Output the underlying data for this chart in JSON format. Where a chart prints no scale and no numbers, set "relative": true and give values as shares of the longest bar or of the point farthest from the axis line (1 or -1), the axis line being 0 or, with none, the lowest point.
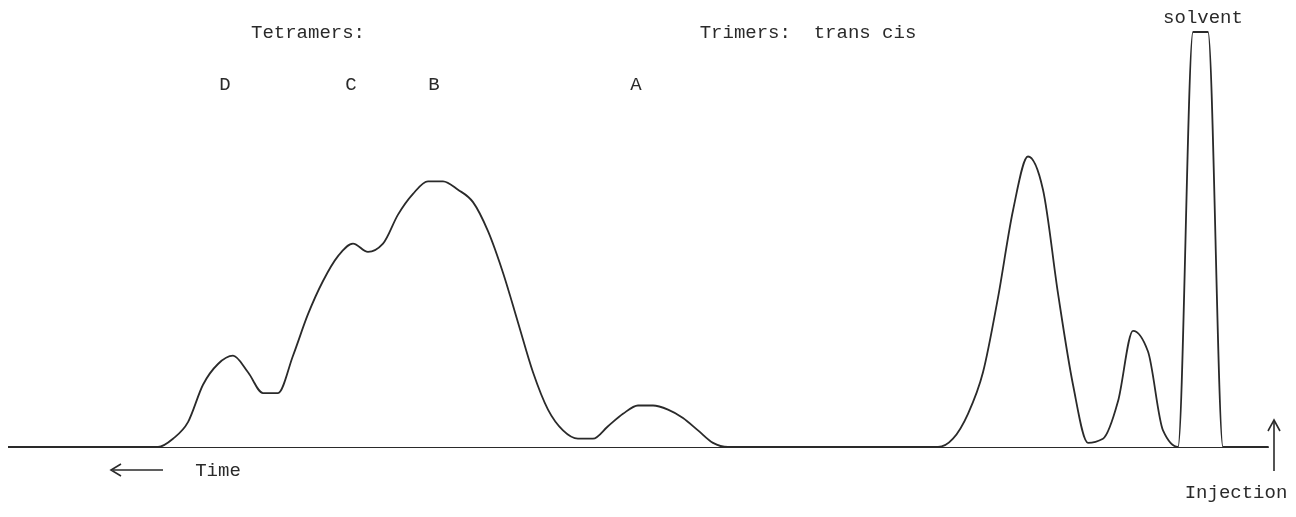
{
  "chart_data": {
    "type": "line",
    "relative": true,
    "color": "#2a2a2a",
    "categories": [
      null,
      null,
      null,
      null,
      null,
      null,
      null,
      null,
      null,
      null,
      null,
      null,
      null,
      null,
      null,
      null,
      null,
      null,
      null,
      null,
      null,
      null,
      null,
      null,
      null,
      null,
      null,
      null,
      null,
      null,
      null,
      null,
      null,
      null,
      null,
      null,
      null,
      null,
      null,
      null,
      null,
      null,
      null,
      null,
      null,
      null,
      null,
      null,
      null,
      null,
      null,
      null,
      null,
      null,
      null,
      null,
      null,
      null,
      null,
      null,
      null,
      null,
      null,
      null,
      null,
      null,
      null,
      null,
      null,
      null,
      null,
      null,
      null,
      null,
      null,
      null,
      null,
      null,
      null,
      null,
      null,
      null,
      null,
      null,
      null
    ],
    "values": [
      0,
      0,
      0,
      0,
      0,
      0,
      0,
      0,
      0,
      0,
      0,
      0.02,
      0.06,
      0.15,
      0.2,
      0.22,
      0.18,
      0.13,
      0.13,
      0.22,
      0.32,
      0.4,
      0.46,
      0.49,
      0.47,
      0.49,
      0.56,
      0.61,
      0.64,
      0.64,
      0.62,
      0.59,
      0.52,
      0.42,
      0.3,
      0.18,
      0.09,
      0.04,
      0.02,
      0.02,
      0.05,
      0.08,
      0.1,
      0.1,
      0.09,
      0.07,
      0.04,
      0.01,
      0,
      0,
      0,
      0,
      0,
      0,
      0,
      0,
      0,
      0,
      0,
      0,
      0,
      0,
      0,
      0.02,
      0.08,
      0.18,
      0.36,
      0.57,
      0.7,
      0.62,
      0.37,
      0.15,
      0.01,
      0.02,
      0.11,
      0.28,
      0.23,
      0.04,
      0,
      1,
      1,
      0,
      0,
      0,
      0
    ],
    "annotations": [
      "Tetramers:",
      "Trimers:  trans cis",
      "solvent",
      "D",
      "C",
      "B",
      "A",
      "Time",
      "Injection"
    ]
  }
}
